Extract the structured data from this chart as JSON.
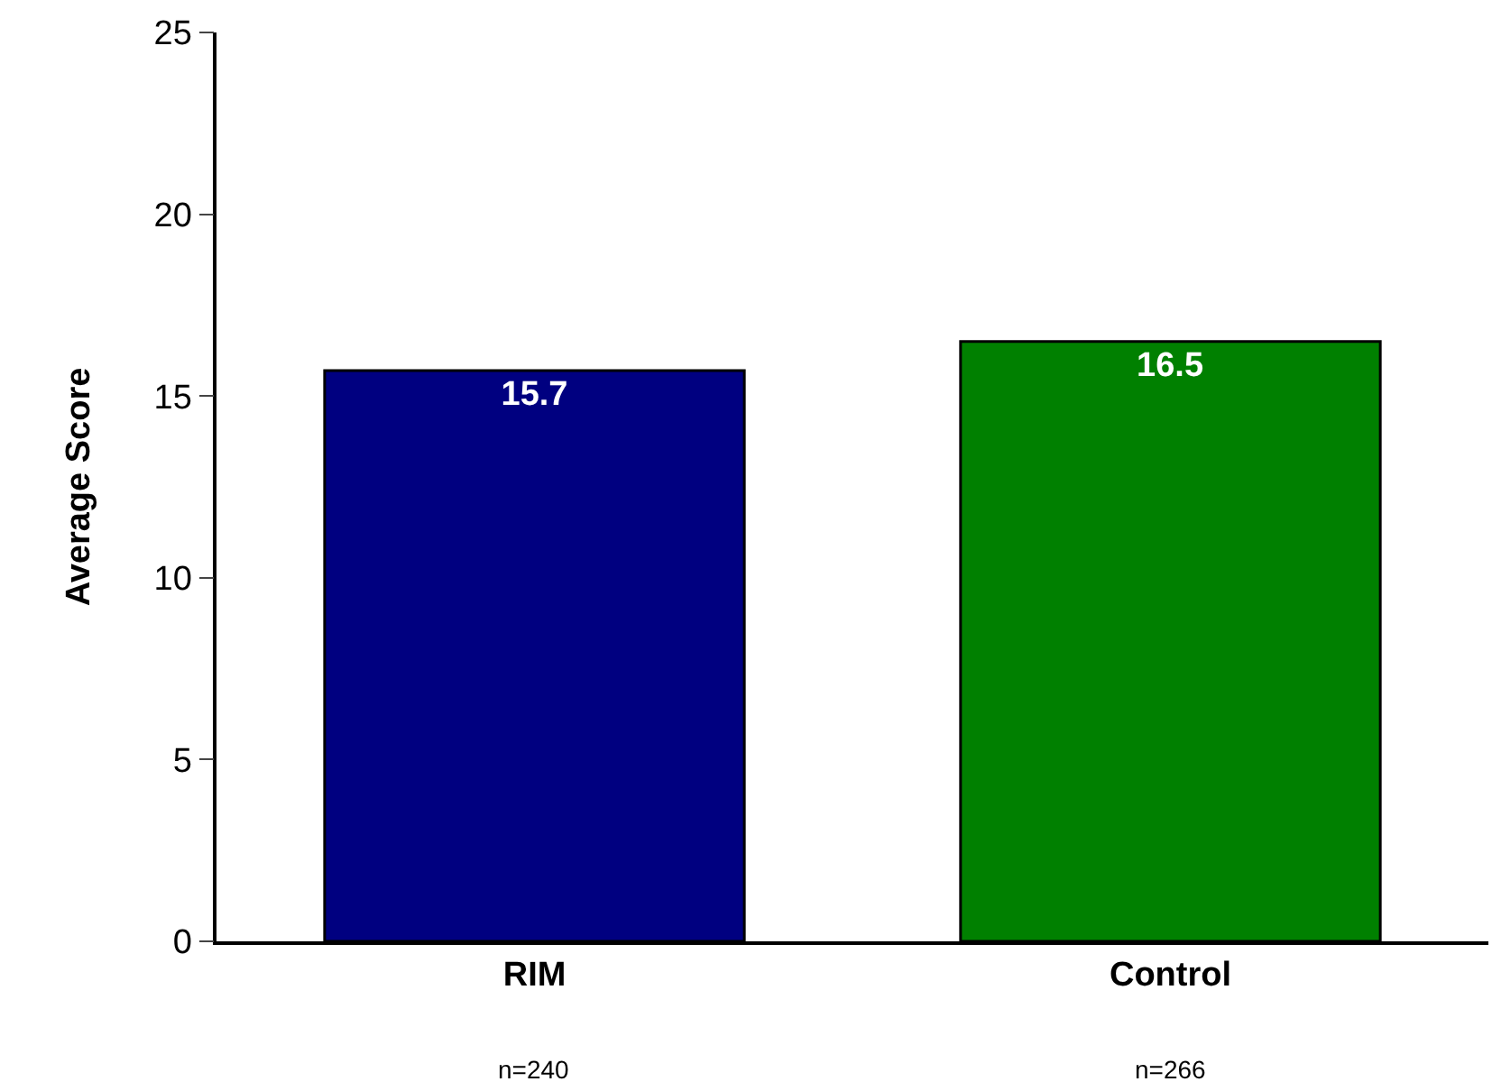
{
  "chart_data": {
    "type": "bar",
    "ylabel": "Average Score",
    "categories": [
      "RIM",
      "Control"
    ],
    "values": [
      15.7,
      16.5
    ],
    "colors": [
      "#000080",
      "#008000"
    ],
    "ylim": [
      0,
      25
    ],
    "yticks": [
      0,
      5,
      10,
      15,
      20,
      25
    ],
    "data_labels": true,
    "annotations": [
      "n=240",
      "n=266"
    ]
  }
}
